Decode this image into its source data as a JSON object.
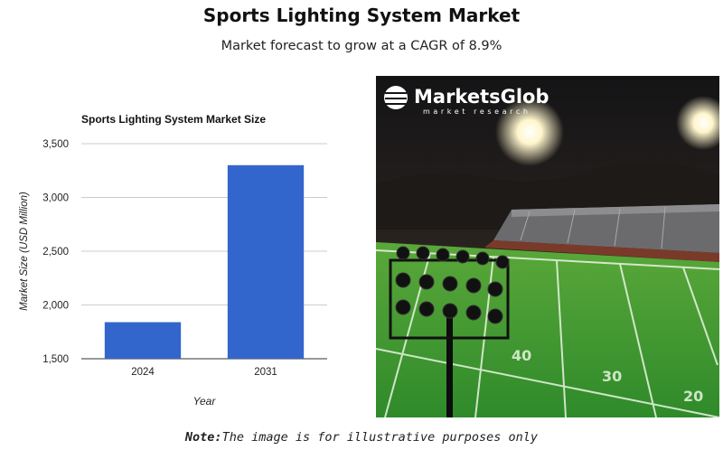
{
  "page": {
    "title": "Sports Lighting System Market",
    "subtitle": "Market forecast to grow at a CAGR of 8.9%",
    "note_label": "Note:",
    "note_text": "The image is for illustrative purposes only"
  },
  "logo": {
    "brand": "MarketsGlob",
    "tagline": "market research"
  },
  "colors": {
    "bar": "#3366cc",
    "grid": "#cccccc",
    "text": "#222222"
  },
  "chart_data": {
    "type": "bar",
    "title": "Sports Lighting System Market Size",
    "xlabel": "Year",
    "ylabel": "Market Size (USD Million)",
    "categories": [
      "2024",
      "2031"
    ],
    "values": [
      1840,
      3300
    ],
    "ylim": [
      1500,
      3500
    ],
    "yticks": [
      1500,
      2000,
      2500,
      3000,
      3500
    ],
    "ytick_labels": [
      "1,500",
      "2,000",
      "2,500",
      "3,000",
      "3,500"
    ],
    "grid": true,
    "legend": "none"
  }
}
